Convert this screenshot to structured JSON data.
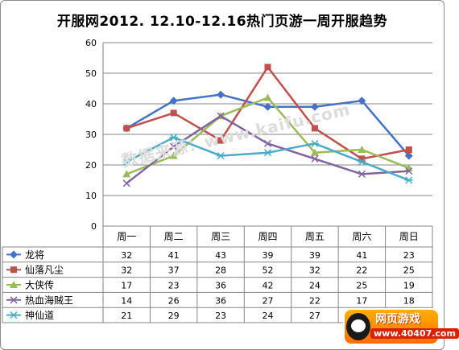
{
  "chart_data": {
    "type": "line",
    "title": "开服网2012. 12.10-12.16热门页游一周开服趋势",
    "categories": [
      "周一",
      "周二",
      "周三",
      "周四",
      "周五",
      "周六",
      "周日"
    ],
    "ylim": [
      0,
      60
    ],
    "yticks": [
      0,
      10,
      20,
      30,
      40,
      50,
      60
    ],
    "grid": true,
    "legend": "data-table-below",
    "series": [
      {
        "name": "龙将",
        "values": [
          32,
          41,
          43,
          39,
          39,
          41,
          23
        ],
        "color": "#4472c4",
        "marker": "diamond"
      },
      {
        "name": "仙落凡尘",
        "values": [
          32,
          37,
          28,
          52,
          32,
          22,
          25
        ],
        "color": "#c0504d",
        "marker": "square"
      },
      {
        "name": "大侠传",
        "values": [
          17,
          23,
          36,
          42,
          24,
          25,
          19
        ],
        "color": "#9bbb59",
        "marker": "triangle"
      },
      {
        "name": "热血海贼王",
        "values": [
          14,
          26,
          36,
          27,
          22,
          17,
          18
        ],
        "color": "#8064a2",
        "marker": "x"
      },
      {
        "name": "神仙道",
        "values": [
          21,
          29,
          23,
          24,
          27,
          21,
          15
        ],
        "color": "#4bacc6",
        "marker": "star"
      }
    ]
  },
  "watermark": "数据来源：www.kaifu.com",
  "badge": {
    "line1": "网页游戏",
    "line2": "www.40407.com"
  }
}
